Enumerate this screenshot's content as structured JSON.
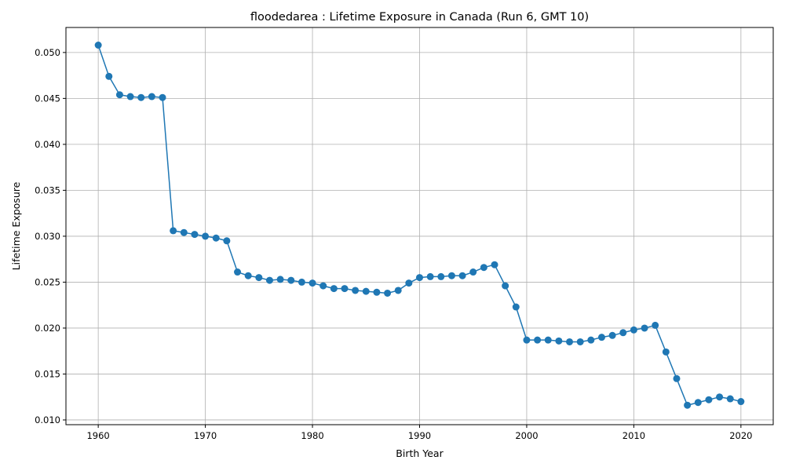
{
  "chart_data": {
    "type": "line",
    "title": "floodedarea : Lifetime Exposure in Canada (Run 6, GMT 10)",
    "xlabel": "Birth Year",
    "ylabel": "Lifetime Exposure",
    "xlim": [
      1956.985,
      2023.015
    ],
    "ylim": [
      0.009484,
      0.052723
    ],
    "x_ticks": [
      1960,
      1970,
      1980,
      1990,
      2000,
      2010,
      2020
    ],
    "x_tick_labels": [
      "1960",
      "1970",
      "1980",
      "1990",
      "2000",
      "2010",
      "2020"
    ],
    "y_ticks": [
      0.01,
      0.015,
      0.02,
      0.025,
      0.03,
      0.035,
      0.04,
      0.045,
      0.05
    ],
    "y_tick_labels": [
      "0.010",
      "0.015",
      "0.020",
      "0.025",
      "0.030",
      "0.035",
      "0.040",
      "0.045",
      "0.050"
    ],
    "grid": true,
    "line_color": "#1f77b4",
    "marker": "circle",
    "series": [
      {
        "x": [
          1960,
          1961,
          1962,
          1963,
          1964,
          1965,
          1966,
          1967,
          1968,
          1969,
          1970,
          1971,
          1972,
          1973,
          1974,
          1975,
          1976,
          1977,
          1978,
          1979,
          1980,
          1981,
          1982,
          1983,
          1984,
          1985,
          1986,
          1987,
          1988,
          1989,
          1990,
          1991,
          1992,
          1993,
          1994,
          1995,
          1996,
          1997,
          1998,
          1999,
          2000,
          2001,
          2002,
          2003,
          2004,
          2005,
          2006,
          2007,
          2008,
          2009,
          2010,
          2011,
          2012,
          2013,
          2014,
          2015,
          2016,
          2017,
          2018,
          2019,
          2020
        ],
        "values": [
          0.0508,
          0.0474,
          0.0454,
          0.0452,
          0.0451,
          0.0452,
          0.0451,
          0.0306,
          0.0304,
          0.0302,
          0.03,
          0.0298,
          0.0295,
          0.0261,
          0.0257,
          0.0255,
          0.0252,
          0.0253,
          0.0252,
          0.025,
          0.0249,
          0.0246,
          0.0243,
          0.0243,
          0.0241,
          0.024,
          0.0239,
          0.0238,
          0.0241,
          0.0249,
          0.0255,
          0.0256,
          0.0256,
          0.0257,
          0.0257,
          0.0261,
          0.0266,
          0.0269,
          0.0246,
          0.0223,
          0.0187,
          0.0187,
          0.0187,
          0.0186,
          0.0185,
          0.0185,
          0.0187,
          0.019,
          0.0192,
          0.0195,
          0.0198,
          0.02,
          0.0203,
          0.0174,
          0.0145,
          0.0116,
          0.0119,
          0.0122,
          0.0125,
          0.0123,
          0.012
        ]
      }
    ]
  }
}
